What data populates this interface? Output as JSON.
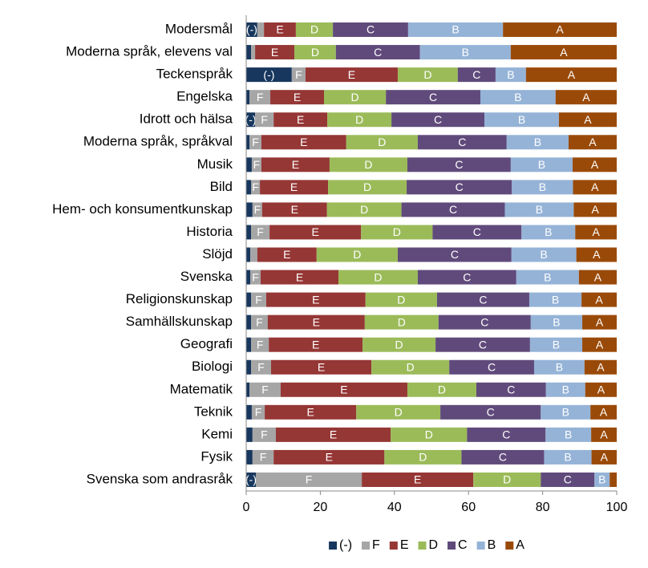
{
  "chart_data": {
    "type": "stacked-barh",
    "categories": [
      "Modersmål",
      "Moderna språk, elevens val",
      "Teckenspråk",
      "Engelska",
      "Idrott och hälsa",
      "Moderna språk, språkval",
      "Musik",
      "Bild",
      "Hem- och konsumentkunskap",
      "Historia",
      "Slöjd",
      "Svenska",
      "Religionskunskap",
      "Samhällskunskap",
      "Geografi",
      "Biologi",
      "Matematik",
      "Teknik",
      "Kemi",
      "Fysik",
      "Svenska som andrasråk"
    ],
    "series": [
      {
        "name": "(-)",
        "color": "#17375e",
        "values": [
          3,
          1.3,
          12.3,
          0.9,
          2.4,
          0.9,
          1.5,
          1.3,
          1.7,
          1.3,
          1.1,
          1.1,
          1.3,
          1.3,
          1.3,
          1.3,
          0.9,
          1.5,
          1.7,
          1.7,
          2.6
        ]
      },
      {
        "name": "F",
        "color": "#a6a6a6",
        "values": [
          1.8,
          1.1,
          3.7,
          5.6,
          5.0,
          3.2,
          2.6,
          2.4,
          2.6,
          5.0,
          1.9,
          2.8,
          4.1,
          4.5,
          4.8,
          5.4,
          8.4,
          3.5,
          6.3,
          5.7,
          28.6
        ]
      },
      {
        "name": "E",
        "color": "#953735",
        "values": [
          8.6,
          10.6,
          24.9,
          14.5,
          14.5,
          22.9,
          18.4,
          18.4,
          17.5,
          24.7,
          16.0,
          21.0,
          26.8,
          26.2,
          25.3,
          27.1,
          34.2,
          24.7,
          31.0,
          29.9,
          30.1
        ]
      },
      {
        "name": "D",
        "color": "#9bbb59",
        "values": [
          10.0,
          11.2,
          16.2,
          16.7,
          17.3,
          19.3,
          21.0,
          21.2,
          20.1,
          19.3,
          21.9,
          21.4,
          19.3,
          19.9,
          19.7,
          21.0,
          18.6,
          22.7,
          20.6,
          20.8,
          18.2
        ]
      },
      {
        "name": "C",
        "color": "#604a7b",
        "values": [
          20.3,
          22.7,
          10.2,
          25.5,
          25.1,
          24.0,
          27.9,
          28.4,
          27.9,
          24.0,
          30.7,
          26.6,
          24.9,
          24.9,
          25.5,
          22.9,
          18.8,
          27.1,
          21.2,
          22.3,
          14.5
        ]
      },
      {
        "name": "B",
        "color": "#95b3d7",
        "values": [
          25.6,
          24.5,
          8.2,
          20.3,
          20.1,
          16.7,
          16.7,
          16.5,
          18.6,
          14.5,
          17.5,
          16.9,
          14.1,
          13.9,
          14.1,
          13.6,
          10.6,
          13.4,
          12.3,
          12.8,
          4.1
        ]
      },
      {
        "name": "A",
        "color": "#9a4a08",
        "values": [
          30.7,
          28.6,
          24.5,
          16.5,
          15.6,
          13.0,
          11.9,
          11.8,
          11.6,
          11.2,
          10.9,
          10.2,
          9.5,
          9.3,
          9.3,
          8.7,
          8.5,
          7.1,
          6.9,
          6.8,
          1.9
        ]
      }
    ],
    "xlim": [
      0,
      100
    ],
    "xticks": [
      0,
      20,
      40,
      60,
      80,
      100
    ],
    "legend": "bottom"
  }
}
